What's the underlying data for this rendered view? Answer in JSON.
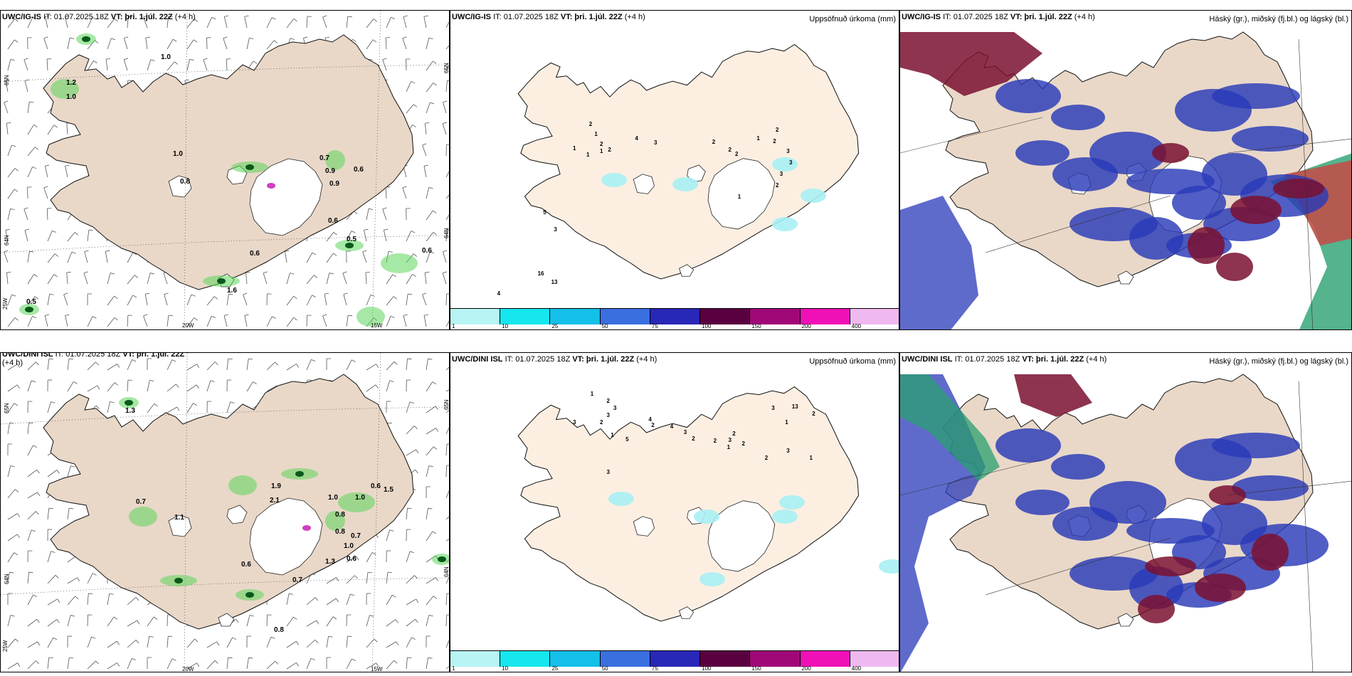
{
  "panels": {
    "ig_wind": {
      "model": "UWC/IG-IS",
      "it": "IT: 01.07.2025 18Z",
      "vt_label": "VT:",
      "vt_value": "þri. 1.júl. 22Z",
      "lead": "(+4 h)",
      "lat_labels": [
        "65N",
        "64N",
        "65N",
        "64N"
      ],
      "lon_labels": [
        "20W",
        "15W",
        "25W"
      ],
      "values": [
        "1.0",
        "1.2",
        "1.0",
        "1.0",
        "0.8",
        "0.7",
        "0.9",
        "0.6",
        "0.9",
        "0.6",
        "0.5",
        "0.6",
        "0.6",
        "1.6",
        "0.5"
      ]
    },
    "ig_precip": {
      "model": "UWC/IG-IS",
      "it": "IT: 01.07.2025 18Z",
      "vt_label": "VT:",
      "vt_value": "þri. 1.júl. 22Z",
      "lead": "(+4 h)",
      "right": "Uppsöfnuð úrkoma (mm)",
      "values": [
        "2",
        "1",
        "2",
        "1",
        "4",
        "3",
        "2",
        "2",
        "1",
        "2",
        "3",
        "3",
        "3",
        "2",
        "1",
        "5",
        "3",
        "16",
        "13",
        "4",
        "2",
        "1",
        "1",
        "2",
        "2"
      ]
    },
    "ig_cloud": {
      "model": "UWC/IG-IS",
      "it": "IT: 01.07.2025 18Z",
      "vt_label": "VT:",
      "vt_value": "þri. 1.júl. 22Z",
      "lead": "(+4 h)",
      "right": "Háský (gr.), miðský (fj.bl.) og lágský (bl.)"
    },
    "dini_wind": {
      "model": "UWC/DINI ISL",
      "it": "IT: 01.07.2025 18Z",
      "vt_label": "VT:",
      "vt_value": "þri. 1.júl. 22Z",
      "lead": "(+4 h)",
      "lat_labels": [
        "65N",
        "64N",
        "65N",
        "64N"
      ],
      "lon_labels": [
        "20W",
        "15W",
        "25W"
      ],
      "values": [
        "1.3",
        "0.7",
        "1.1",
        "1.9",
        "2.1",
        "1.0",
        "1.0",
        "0.6",
        "0.8",
        "0.6",
        "0.8",
        "0.7",
        "1.0",
        "0.6",
        "0.7",
        "1.3",
        "0.8",
        "1.5"
      ]
    },
    "dini_precip": {
      "model": "UWC/DINI ISL",
      "it": "IT: 01.07.2025 18Z",
      "vt_label": "VT:",
      "vt_value": "þri. 1.júl. 22Z",
      "lead": "(+4 h)",
      "right": "Uppsöfnuð úrkoma (mm)",
      "values": [
        "1",
        "2",
        "3",
        "3",
        "2",
        "3",
        "4",
        "2",
        "1",
        "5",
        "4",
        "3",
        "2",
        "2",
        "2",
        "3",
        "2",
        "1",
        "3",
        "13",
        "1",
        "2",
        "3",
        "3",
        "1",
        "2"
      ]
    },
    "dini_cloud": {
      "model": "UWC/DINI ISL",
      "it": "IT: 01.07.2025 18Z",
      "vt_label": "VT:",
      "vt_value": "þri. 1.júl. 22Z",
      "lead": "(+4 h)",
      "right": "Háský (gr.), miðský (fj.bl.) og lágský (bl.)"
    }
  },
  "legend": {
    "ticks": [
      "1",
      "10",
      "25",
      "50",
      "75",
      "100",
      "150",
      "200",
      "400"
    ],
    "colors": [
      "#b8f4f4",
      "#16e6ee",
      "#14bfe8",
      "#3a6fe0",
      "#2828b8",
      "#5a0040",
      "#a00878",
      "#f010b8",
      "#f0b8f0"
    ]
  },
  "colors": {
    "land": "#e9d8c8",
    "land_light": "#fcefe2",
    "glacier": "#ffffff",
    "precip_green": "#5cd65c",
    "precip_dark": "#0a5a1a",
    "cloud_high": "#7a1030",
    "cloud_mid": "#2a3ab8",
    "cloud_low": "#2aa070"
  }
}
